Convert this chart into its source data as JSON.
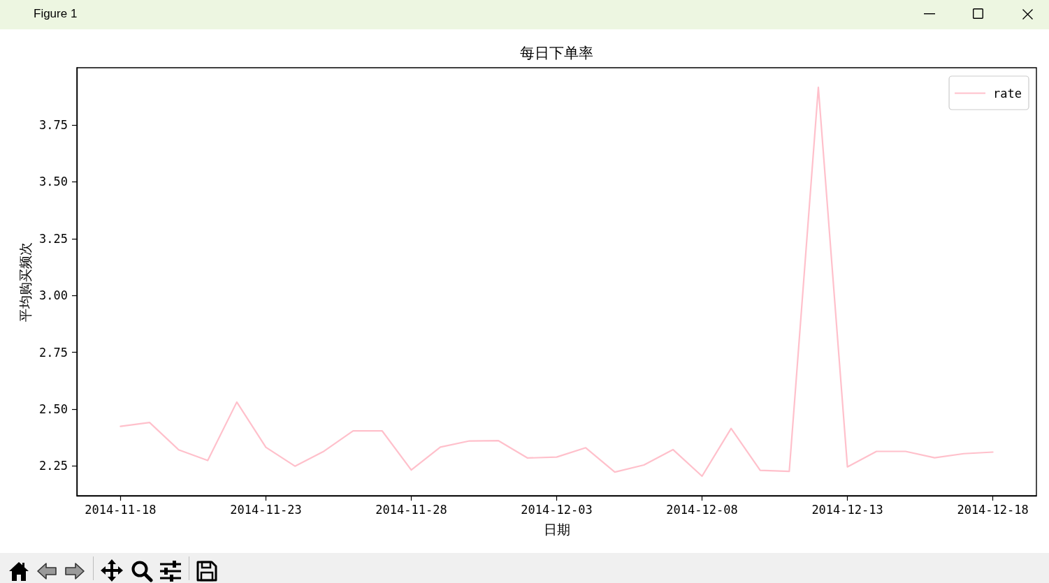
{
  "chart_data": {
    "type": "line",
    "title": "每日下单率",
    "xlabel": "日期",
    "ylabel": "平均购买频次",
    "annotations": [
      "Figure 1"
    ],
    "x": [
      "2014-11-18",
      "2014-11-19",
      "2014-11-20",
      "2014-11-21",
      "2014-11-22",
      "2014-11-23",
      "2014-11-24",
      "2014-11-25",
      "2014-11-26",
      "2014-11-27",
      "2014-11-28",
      "2014-11-29",
      "2014-11-30",
      "2014-12-01",
      "2014-12-02",
      "2014-12-03",
      "2014-12-04",
      "2014-12-05",
      "2014-12-06",
      "2014-12-07",
      "2014-12-08",
      "2014-12-09",
      "2014-12-10",
      "2014-12-11",
      "2014-12-12",
      "2014-12-13",
      "2014-12-14",
      "2014-12-15",
      "2014-12-16",
      "2014-12-17",
      "2014-12-18"
    ],
    "series": [
      {
        "name": "rate",
        "color": "#ffc0cb",
        "values": [
          2.424,
          2.441,
          2.321,
          2.274,
          2.531,
          2.332,
          2.249,
          2.315,
          2.404,
          2.404,
          2.232,
          2.333,
          2.36,
          2.361,
          2.285,
          2.289,
          2.33,
          2.223,
          2.254,
          2.322,
          2.205,
          2.415,
          2.231,
          2.226,
          3.916,
          2.246,
          2.314,
          2.314,
          2.286,
          2.304,
          2.311
        ]
      }
    ],
    "xlim": [
      "2014-11-16T12:00",
      "2014-12-19T12:00"
    ],
    "xticks": [
      "2014-11-18",
      "2014-11-23",
      "2014-11-28",
      "2014-12-03",
      "2014-12-08",
      "2014-12-13",
      "2014-12-18"
    ],
    "ylim": [
      2.119,
      4.002
    ],
    "yticks": [
      {
        "value": 2.25,
        "label": "2.25"
      },
      {
        "value": 2.5,
        "label": "2.50"
      },
      {
        "value": 2.75,
        "label": "2.75"
      },
      {
        "value": 3,
        "label": "3.00"
      },
      {
        "value": 3.25,
        "label": "3.25"
      },
      {
        "value": 3.5,
        "label": "3.50"
      },
      {
        "value": 3.75,
        "label": "3.75"
      }
    ],
    "grid": false,
    "legend": "top right",
    "marker": "none",
    "line_style": "solid"
  }
}
